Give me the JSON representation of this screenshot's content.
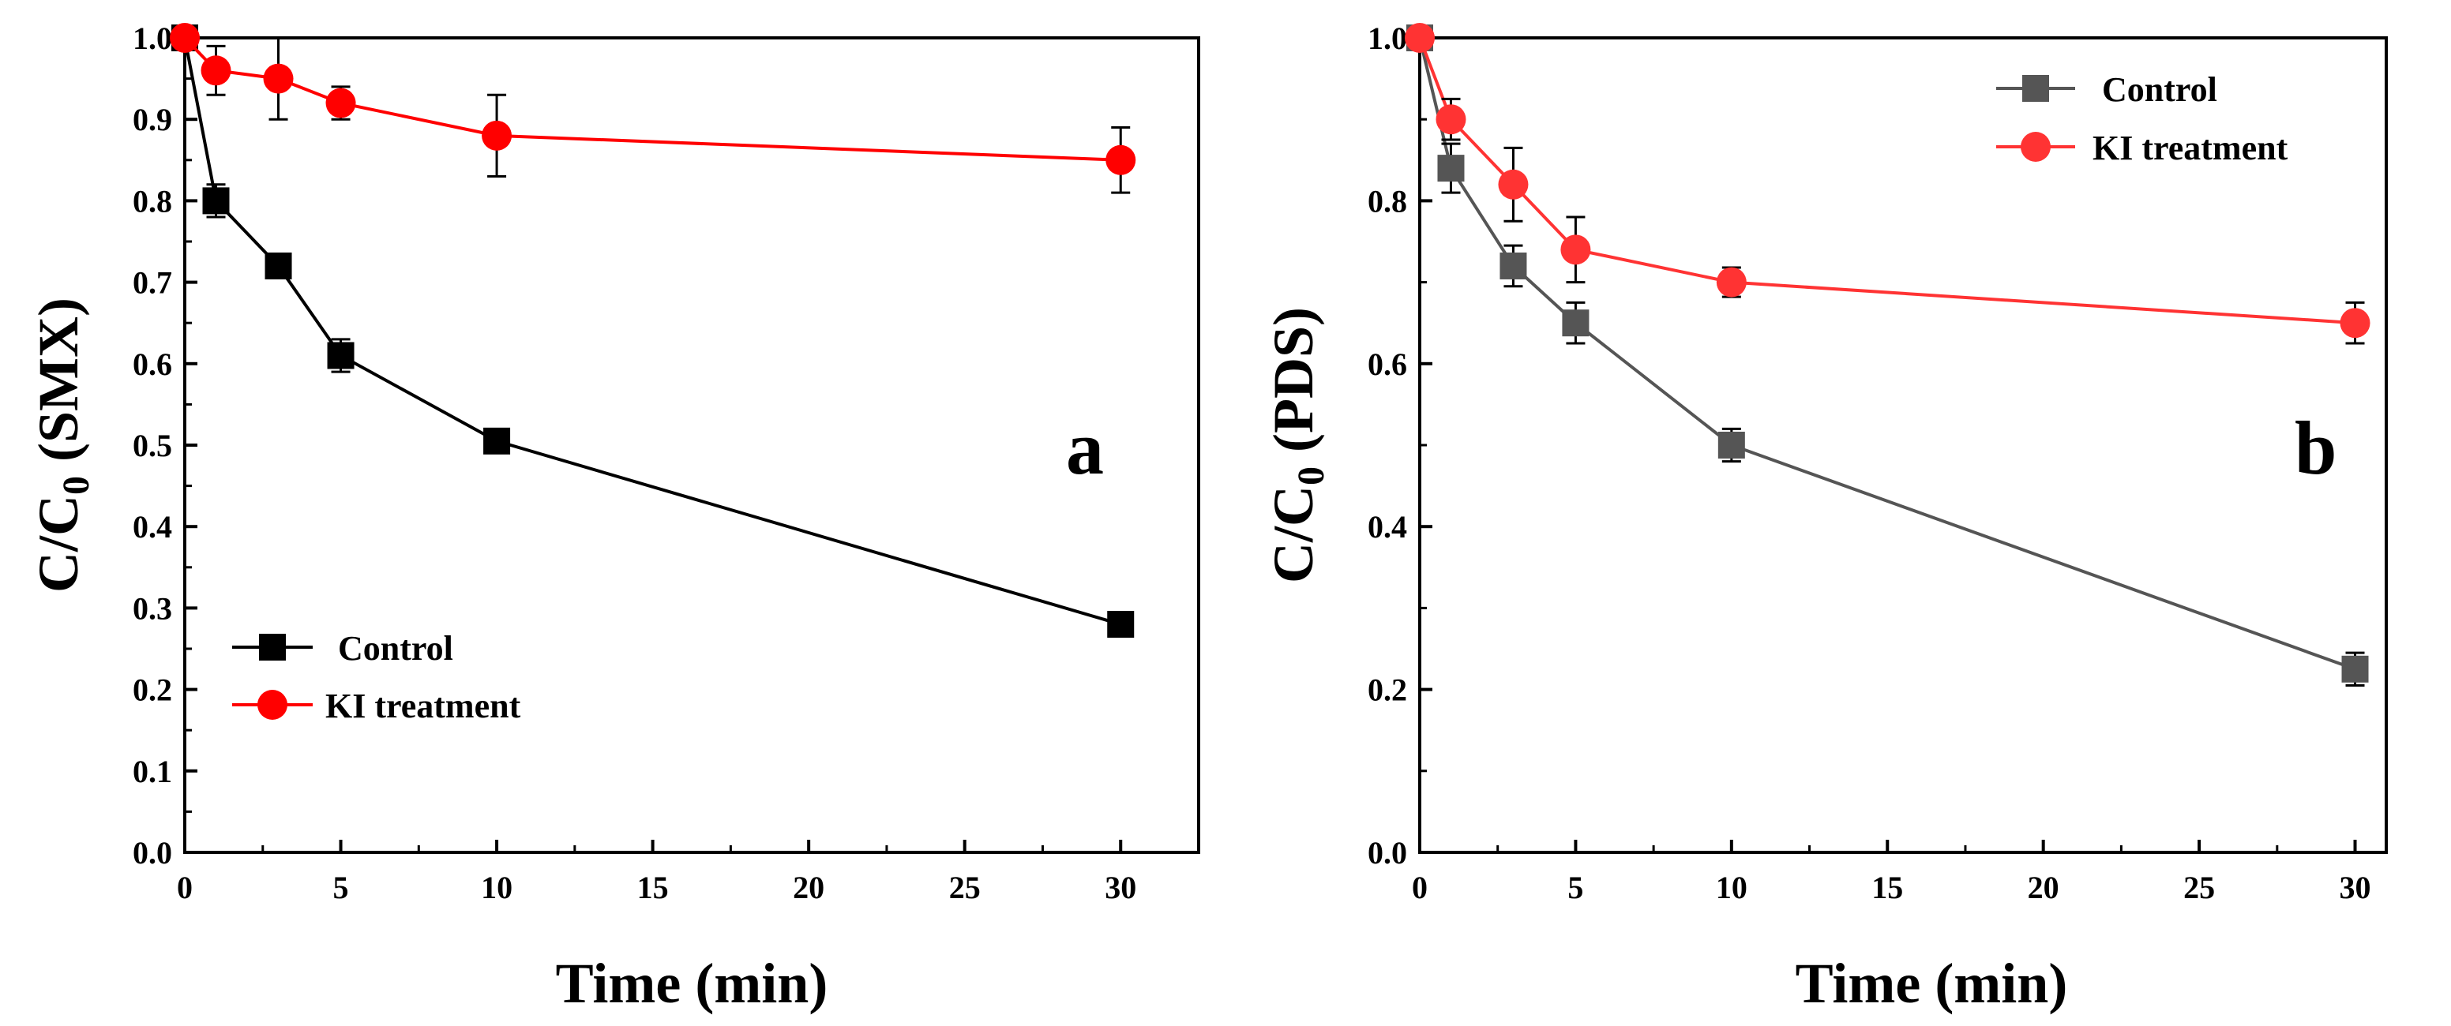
{
  "chart_data": [
    {
      "type": "line",
      "panel_label": "a",
      "xlabel": "Time (min)",
      "ylabel_main": "C/C",
      "ylabel_sub": "0",
      "ylabel_suffix": " (SMX)",
      "xlim": [
        0,
        32.5
      ],
      "ylim": [
        0,
        1.0
      ],
      "xticks": [
        "0",
        "5",
        "10",
        "15",
        "20",
        "25",
        "30"
      ],
      "yticks": [
        "0.0",
        "0.1",
        "0.2",
        "0.3",
        "0.4",
        "0.5",
        "0.6",
        "0.7",
        "0.8",
        "0.9",
        "1.0"
      ],
      "legend_position": "bottom-left",
      "series": [
        {
          "name": "Control",
          "color": "#000000",
          "marker": "square",
          "x": [
            0,
            1,
            3,
            5,
            10,
            30
          ],
          "y": [
            1.0,
            0.8,
            0.72,
            0.61,
            0.505,
            0.28
          ],
          "err": [
            0,
            0.02,
            0.015,
            0.02,
            0.012,
            0.012
          ]
        },
        {
          "name": "KI treatment",
          "color": "#ff0000",
          "marker": "circle",
          "x": [
            0,
            1,
            3,
            5,
            10,
            30
          ],
          "y": [
            1.0,
            0.96,
            0.95,
            0.92,
            0.88,
            0.85
          ],
          "err": [
            0,
            0.03,
            0.05,
            0.02,
            0.05,
            0.04
          ]
        }
      ]
    },
    {
      "type": "line",
      "panel_label": "b",
      "xlabel": "Time (min)",
      "ylabel_main": "C/C",
      "ylabel_sub": "0",
      "ylabel_suffix": " (PDS)",
      "xlim": [
        0,
        31
      ],
      "ylim": [
        0,
        1.0
      ],
      "xticks": [
        "0",
        "5",
        "10",
        "15",
        "20",
        "25",
        "30"
      ],
      "yticks": [
        "0.0",
        "0.2",
        "0.4",
        "0.6",
        "0.8",
        "1.0"
      ],
      "legend_position": "top-right",
      "series": [
        {
          "name": "Control",
          "color": "#555555",
          "marker": "square",
          "x": [
            0,
            1,
            3,
            5,
            10,
            30
          ],
          "y": [
            1.0,
            0.84,
            0.72,
            0.65,
            0.5,
            0.225
          ],
          "err": [
            0,
            0.03,
            0.025,
            0.025,
            0.02,
            0.02
          ]
        },
        {
          "name": "KI treatment",
          "color": "#ff3333",
          "marker": "circle",
          "x": [
            0,
            1,
            3,
            5,
            10,
            30
          ],
          "y": [
            1.0,
            0.9,
            0.82,
            0.74,
            0.7,
            0.65
          ],
          "err": [
            0,
            0.025,
            0.045,
            0.04,
            0.018,
            0.025
          ]
        }
      ]
    }
  ]
}
